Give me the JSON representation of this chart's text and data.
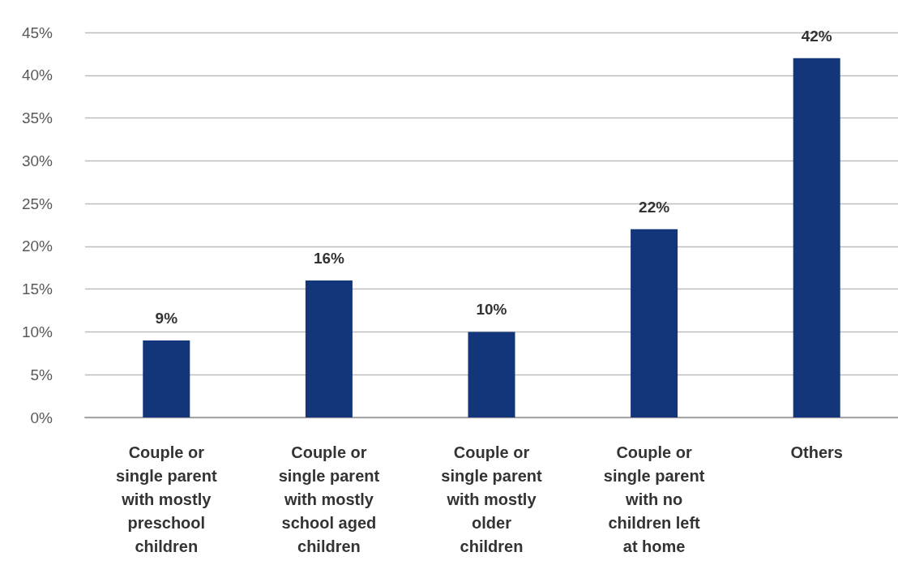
{
  "chart_data": {
    "type": "bar",
    "categories": [
      "Couple or\nsingle parent\nwith mostly\npreschool\nchildren",
      "Couple or\nsingle parent\nwith mostly\nschool aged\nchildren",
      "Couple or\nsingle parent\nwith mostly\nolder\nchildren",
      "Couple or\nsingle parent\nwith no\nchildren left\nat home",
      "Others"
    ],
    "values": [
      9,
      16,
      10,
      22,
      42
    ],
    "color": "#13357a",
    "value_labels": [
      "9%",
      "16%",
      "10%",
      "22%",
      "42%"
    ],
    "ylim": [
      0,
      45
    ],
    "yticks": [
      {
        "value": 0,
        "label": "0%"
      },
      {
        "value": 5,
        "label": "5%"
      },
      {
        "value": 10,
        "label": "10%"
      },
      {
        "value": 15,
        "label": "15%"
      },
      {
        "value": 20,
        "label": "20%"
      },
      {
        "value": 25,
        "label": "25%"
      },
      {
        "value": 30,
        "label": "30%"
      },
      {
        "value": 35,
        "label": "35%"
      },
      {
        "value": 40,
        "label": "40%"
      },
      {
        "value": 45,
        "label": "45%"
      }
    ],
    "grid": "y"
  }
}
